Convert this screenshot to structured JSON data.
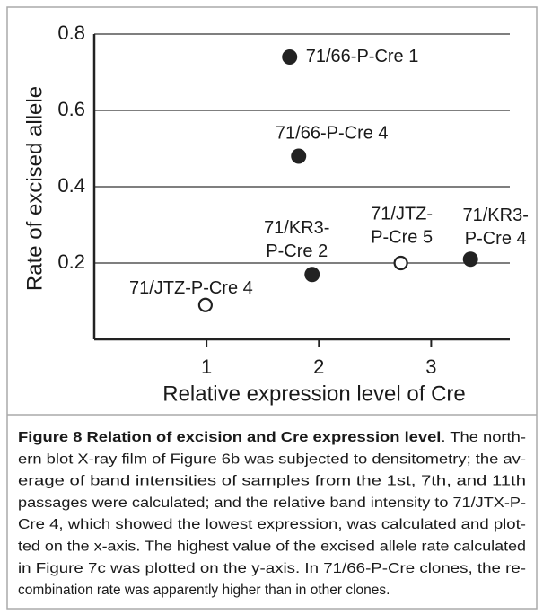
{
  "chart_data": {
    "type": "scatter",
    "x_label": "Relative expression level of Cre",
    "y_label": "Rate of excised allele",
    "x": [
      1.74,
      1.82,
      1.94,
      0.99,
      2.73,
      3.35
    ],
    "values": [
      0.74,
      0.48,
      0.17,
      0.09,
      0.2,
      0.21
    ],
    "point_labels": [
      [
        "71/66-P-Cre 1"
      ],
      [
        "71/66-P-Cre 4"
      ],
      [
        "71/KR3-",
        "P-Cre 2"
      ],
      [
        "71/JTZ-P-Cre 4"
      ],
      [
        "71/JTZ-",
        "P-Cre 5"
      ],
      [
        "71/KR3-",
        "P-Cre 4"
      ]
    ],
    "markers": [
      "filled",
      "filled",
      "filled",
      "open",
      "open",
      "filled"
    ],
    "color": "#222222",
    "xlim": [
      0,
      3.7
    ],
    "xticks": [
      1,
      2,
      3
    ],
    "ylim": [
      0,
      0.8
    ],
    "yticks": [
      0.2,
      0.4,
      0.6,
      0.8
    ],
    "grid": true
  },
  "caption": {
    "lines": [
      [
        "Figure 8 Relation of excision and Cre expression level",
        ". The north-"
      ],
      [
        "ern blot X-ray film of Figure 6b was subjected to densitometry; the av-"
      ],
      [
        "erage of band intensities of samples from the 1st, 7th, and 11th"
      ],
      [
        "passages were calculated; and the relative band intensity to 71/JTX-P-"
      ],
      [
        "Cre 4, which showed the lowest expression, was calculated and plot-"
      ],
      [
        "ted on the x-axis. The highest value of the excised allele rate calculated"
      ],
      [
        "in Figure 7c was plotted on the y-axis. In 71/66-P-Cre clones, the re-"
      ],
      [
        "combination rate was apparently higher than in other clones."
      ]
    ]
  }
}
